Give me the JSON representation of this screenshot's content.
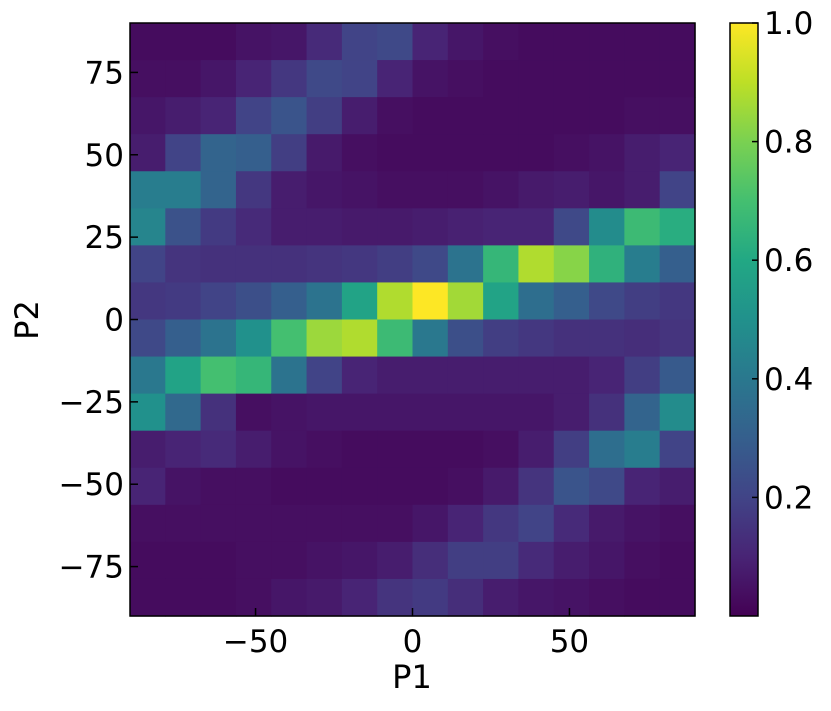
{
  "chart_data": {
    "type": "heatmap",
    "xlabel": "P1",
    "ylabel": "P2",
    "xlim": [
      -90,
      90
    ],
    "ylim": [
      -90,
      90
    ],
    "x_ticks": [
      -50,
      0,
      50
    ],
    "x_tick_labels": [
      "−50",
      "0",
      "50"
    ],
    "y_ticks": [
      -75,
      -50,
      -25,
      0,
      25,
      50,
      75
    ],
    "y_tick_labels": [
      "−75",
      "−50",
      "−25",
      "0",
      "25",
      "50",
      "75"
    ],
    "x_bin_edges": [
      -90,
      -78.75,
      -67.5,
      -56.25,
      -45,
      -33.75,
      -22.5,
      -11.25,
      0,
      11.25,
      22.5,
      33.75,
      45,
      56.25,
      67.5,
      78.75,
      90
    ],
    "y_bin_edges": [
      -90,
      -78.75,
      -67.5,
      -56.25,
      -45,
      -33.75,
      -22.5,
      -11.25,
      0,
      11.25,
      22.5,
      33.75,
      45,
      56.25,
      67.5,
      78.75,
      90
    ],
    "values_top_to_bottom": [
      [
        0.03,
        0.03,
        0.03,
        0.05,
        0.06,
        0.12,
        0.2,
        0.22,
        0.1,
        0.06,
        0.04,
        0.03,
        0.03,
        0.03,
        0.03,
        0.03
      ],
      [
        0.04,
        0.04,
        0.06,
        0.1,
        0.16,
        0.22,
        0.2,
        0.1,
        0.05,
        0.04,
        0.03,
        0.03,
        0.03,
        0.03,
        0.03,
        0.03
      ],
      [
        0.06,
        0.08,
        0.1,
        0.2,
        0.26,
        0.18,
        0.08,
        0.04,
        0.03,
        0.03,
        0.03,
        0.03,
        0.03,
        0.03,
        0.04,
        0.04
      ],
      [
        0.08,
        0.2,
        0.32,
        0.3,
        0.18,
        0.07,
        0.04,
        0.03,
        0.03,
        0.03,
        0.03,
        0.03,
        0.04,
        0.05,
        0.08,
        0.1
      ],
      [
        0.42,
        0.42,
        0.32,
        0.16,
        0.08,
        0.06,
        0.05,
        0.04,
        0.04,
        0.04,
        0.05,
        0.07,
        0.08,
        0.06,
        0.08,
        0.2
      ],
      [
        0.45,
        0.25,
        0.17,
        0.12,
        0.08,
        0.08,
        0.07,
        0.07,
        0.08,
        0.09,
        0.1,
        0.1,
        0.22,
        0.48,
        0.68,
        0.62
      ],
      [
        0.2,
        0.15,
        0.14,
        0.14,
        0.14,
        0.15,
        0.16,
        0.18,
        0.22,
        0.38,
        0.66,
        0.88,
        0.82,
        0.64,
        0.42,
        0.3
      ],
      [
        0.16,
        0.17,
        0.2,
        0.24,
        0.3,
        0.38,
        0.58,
        0.88,
        1.0,
        0.86,
        0.58,
        0.36,
        0.3,
        0.22,
        0.18,
        0.16
      ],
      [
        0.22,
        0.3,
        0.38,
        0.5,
        0.7,
        0.85,
        0.88,
        0.68,
        0.4,
        0.24,
        0.18,
        0.16,
        0.14,
        0.14,
        0.13,
        0.15
      ],
      [
        0.4,
        0.58,
        0.7,
        0.66,
        0.38,
        0.2,
        0.1,
        0.08,
        0.08,
        0.08,
        0.08,
        0.08,
        0.08,
        0.1,
        0.18,
        0.28
      ],
      [
        0.5,
        0.34,
        0.14,
        0.04,
        0.05,
        0.06,
        0.06,
        0.06,
        0.06,
        0.06,
        0.06,
        0.06,
        0.08,
        0.14,
        0.32,
        0.48
      ],
      [
        0.08,
        0.1,
        0.12,
        0.08,
        0.05,
        0.04,
        0.03,
        0.03,
        0.03,
        0.03,
        0.04,
        0.08,
        0.18,
        0.36,
        0.42,
        0.2
      ],
      [
        0.1,
        0.05,
        0.04,
        0.04,
        0.03,
        0.03,
        0.03,
        0.03,
        0.03,
        0.04,
        0.07,
        0.15,
        0.26,
        0.22,
        0.1,
        0.08
      ],
      [
        0.04,
        0.04,
        0.04,
        0.04,
        0.04,
        0.04,
        0.04,
        0.04,
        0.06,
        0.1,
        0.16,
        0.2,
        0.12,
        0.07,
        0.05,
        0.04
      ],
      [
        0.03,
        0.03,
        0.03,
        0.04,
        0.04,
        0.05,
        0.06,
        0.08,
        0.13,
        0.18,
        0.18,
        0.12,
        0.08,
        0.06,
        0.04,
        0.03
      ],
      [
        0.03,
        0.03,
        0.03,
        0.04,
        0.06,
        0.07,
        0.1,
        0.15,
        0.17,
        0.13,
        0.08,
        0.06,
        0.05,
        0.04,
        0.03,
        0.03
      ]
    ],
    "colormap": "viridis",
    "colorbar_ticks": [
      0.2,
      0.4,
      0.6,
      0.8,
      1.0
    ],
    "colorbar_tick_labels": [
      "0.2",
      "0.4",
      "0.6",
      "0.8",
      "1.0"
    ],
    "colorbar_range": [
      0.0,
      1.0
    ],
    "grid": false
  }
}
